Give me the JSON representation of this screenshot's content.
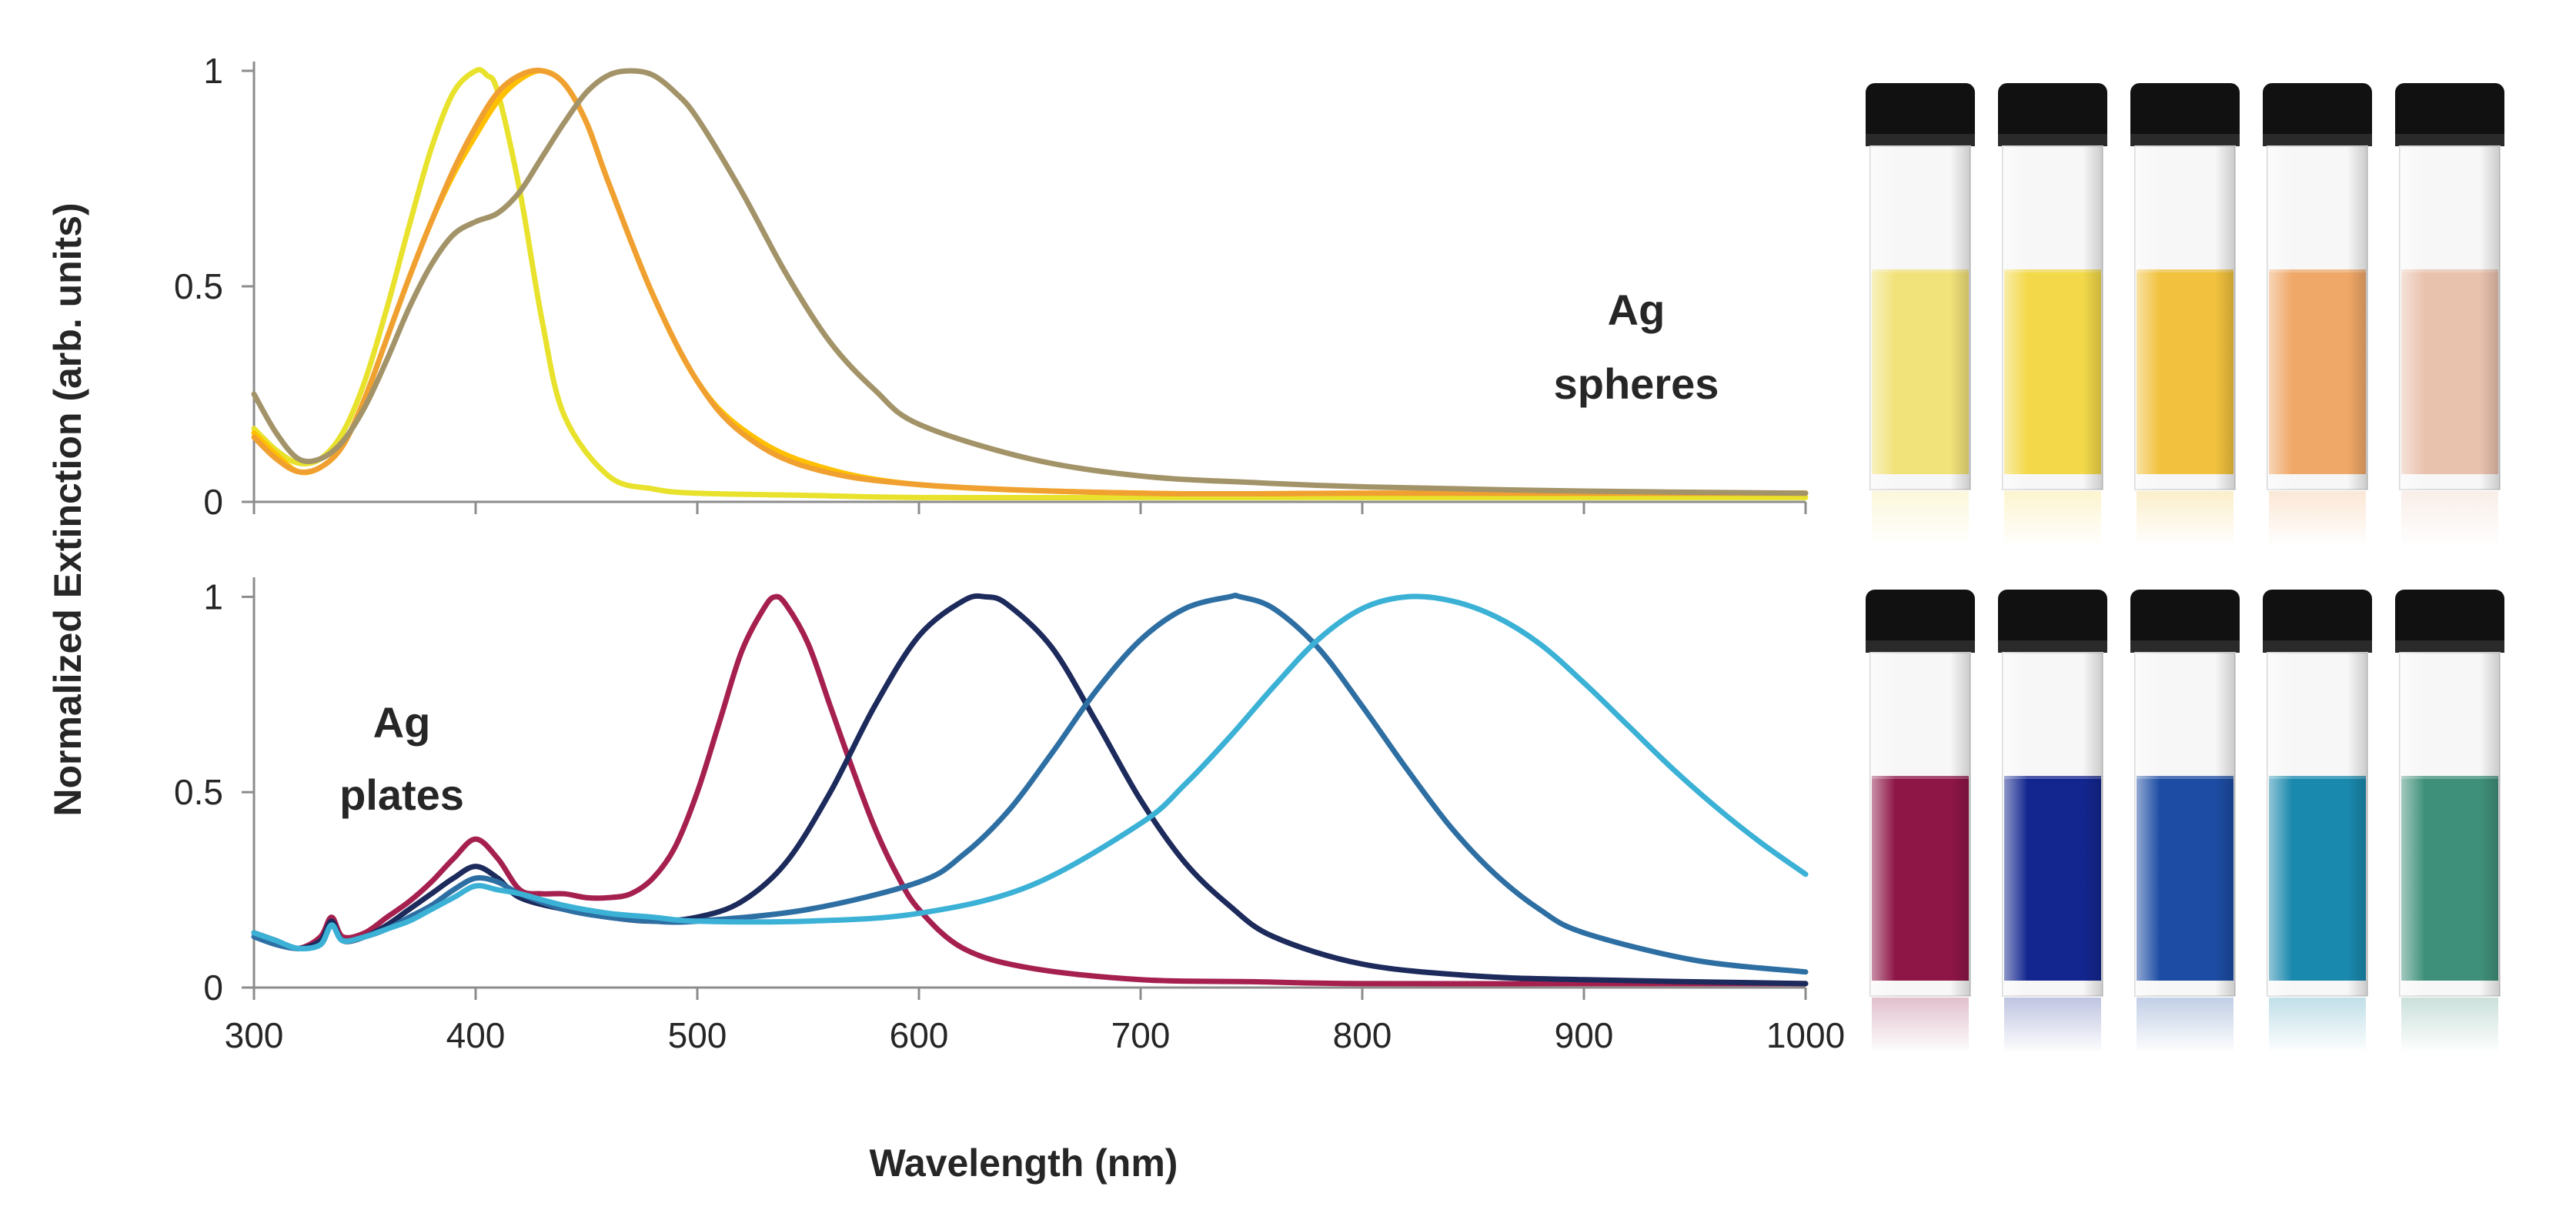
{
  "chart_data": [
    {
      "type": "line",
      "id": "spheres",
      "annotation": [
        "Ag",
        "spheres"
      ],
      "xlim": [
        300,
        1000
      ],
      "ylim": [
        0,
        1.05
      ],
      "yticks": [
        0,
        0.5,
        1
      ],
      "ytick_labels": [
        "0",
        "0.5",
        "1"
      ],
      "series": [
        {
          "name": "sphere-1",
          "color": "#e8e22c",
          "x": [
            300,
            310,
            320,
            330,
            340,
            350,
            360,
            370,
            380,
            390,
            400,
            405,
            410,
            420,
            430,
            440,
            460,
            480,
            500,
            550,
            600,
            700,
            800,
            900,
            1000
          ],
          "y": [
            0.17,
            0.12,
            0.09,
            0.1,
            0.16,
            0.28,
            0.45,
            0.64,
            0.82,
            0.95,
            1.0,
            0.99,
            0.95,
            0.72,
            0.42,
            0.2,
            0.06,
            0.03,
            0.02,
            0.015,
            0.01,
            0.01,
            0.01,
            0.01,
            0.01
          ]
        },
        {
          "name": "sphere-2",
          "color": "#ffc000",
          "x": [
            300,
            310,
            320,
            330,
            340,
            350,
            360,
            370,
            380,
            390,
            400,
            410,
            420,
            430,
            440,
            450,
            460,
            480,
            500,
            520,
            550,
            600,
            700,
            800,
            900,
            1000
          ],
          "y": [
            0.16,
            0.11,
            0.07,
            0.08,
            0.13,
            0.24,
            0.38,
            0.52,
            0.65,
            0.76,
            0.85,
            0.93,
            0.98,
            1.0,
            0.97,
            0.88,
            0.74,
            0.48,
            0.28,
            0.17,
            0.09,
            0.04,
            0.02,
            0.02,
            0.02,
            0.02
          ]
        },
        {
          "name": "sphere-3",
          "color": "#f0a030",
          "x": [
            300,
            310,
            320,
            330,
            340,
            350,
            360,
            370,
            380,
            390,
            400,
            410,
            420,
            430,
            440,
            450,
            460,
            480,
            500,
            520,
            550,
            600,
            700,
            800,
            900,
            1000
          ],
          "y": [
            0.15,
            0.1,
            0.07,
            0.08,
            0.13,
            0.24,
            0.38,
            0.52,
            0.65,
            0.77,
            0.87,
            0.95,
            0.99,
            1.0,
            0.97,
            0.88,
            0.74,
            0.48,
            0.28,
            0.16,
            0.08,
            0.04,
            0.02,
            0.02,
            0.02,
            0.02
          ]
        },
        {
          "name": "sphere-4",
          "color": "#a39368",
          "x": [
            300,
            310,
            320,
            330,
            340,
            350,
            360,
            370,
            380,
            390,
            400,
            410,
            420,
            430,
            440,
            450,
            460,
            470,
            480,
            490,
            500,
            520,
            540,
            560,
            580,
            600,
            650,
            700,
            750,
            800,
            900,
            1000
          ],
          "y": [
            0.25,
            0.16,
            0.1,
            0.1,
            0.14,
            0.22,
            0.33,
            0.45,
            0.55,
            0.62,
            0.65,
            0.67,
            0.72,
            0.8,
            0.88,
            0.95,
            0.99,
            1.0,
            0.99,
            0.95,
            0.89,
            0.72,
            0.53,
            0.37,
            0.26,
            0.18,
            0.1,
            0.06,
            0.045,
            0.035,
            0.025,
            0.02
          ]
        }
      ]
    },
    {
      "type": "line",
      "id": "plates",
      "annotation": [
        "Ag",
        "plates"
      ],
      "xlim": [
        300,
        1000
      ],
      "ylim": [
        0,
        1.05
      ],
      "xticks": [
        300,
        400,
        500,
        600,
        700,
        800,
        900,
        1000
      ],
      "xtick_labels": [
        "300",
        "400",
        "500",
        "600",
        "700",
        "800",
        "900",
        "1000"
      ],
      "yticks": [
        0,
        0.5,
        1
      ],
      "ytick_labels": [
        "0",
        "0.5",
        "1"
      ],
      "series": [
        {
          "name": "plate-1",
          "color": "#a5204f",
          "x": [
            300,
            310,
            320,
            330,
            335,
            340,
            350,
            360,
            370,
            380,
            390,
            400,
            410,
            420,
            430,
            440,
            450,
            460,
            470,
            480,
            490,
            500,
            510,
            520,
            530,
            535,
            540,
            550,
            560,
            570,
            580,
            590,
            600,
            620,
            650,
            700,
            750,
            800,
            900,
            1000
          ],
          "y": [
            0.14,
            0.12,
            0.1,
            0.13,
            0.18,
            0.13,
            0.14,
            0.18,
            0.22,
            0.27,
            0.33,
            0.38,
            0.33,
            0.25,
            0.24,
            0.24,
            0.23,
            0.23,
            0.24,
            0.28,
            0.36,
            0.5,
            0.68,
            0.86,
            0.97,
            1.0,
            0.98,
            0.88,
            0.72,
            0.56,
            0.41,
            0.29,
            0.2,
            0.1,
            0.05,
            0.02,
            0.015,
            0.01,
            0.01,
            0.01
          ]
        },
        {
          "name": "plate-2",
          "color": "#1c2a5c",
          "x": [
            300,
            310,
            320,
            330,
            335,
            340,
            350,
            360,
            370,
            380,
            390,
            400,
            410,
            420,
            440,
            460,
            480,
            500,
            520,
            540,
            560,
            580,
            600,
            620,
            630,
            640,
            660,
            680,
            700,
            720,
            740,
            760,
            800,
            850,
            900,
            1000
          ],
          "y": [
            0.14,
            0.12,
            0.1,
            0.12,
            0.17,
            0.12,
            0.13,
            0.16,
            0.2,
            0.24,
            0.28,
            0.31,
            0.28,
            0.23,
            0.2,
            0.18,
            0.17,
            0.18,
            0.22,
            0.32,
            0.5,
            0.72,
            0.9,
            0.99,
            1.0,
            0.98,
            0.87,
            0.68,
            0.48,
            0.32,
            0.21,
            0.13,
            0.06,
            0.03,
            0.02,
            0.01
          ]
        },
        {
          "name": "plate-3",
          "color": "#2e6fa3",
          "x": [
            300,
            310,
            320,
            330,
            335,
            340,
            350,
            360,
            370,
            380,
            390,
            400,
            410,
            420,
            440,
            460,
            480,
            500,
            550,
            600,
            620,
            640,
            660,
            680,
            700,
            720,
            740,
            745,
            760,
            780,
            800,
            820,
            840,
            860,
            880,
            900,
            950,
            1000
          ],
          "y": [
            0.13,
            0.11,
            0.1,
            0.11,
            0.16,
            0.12,
            0.13,
            0.15,
            0.18,
            0.21,
            0.25,
            0.28,
            0.27,
            0.24,
            0.2,
            0.18,
            0.17,
            0.17,
            0.2,
            0.27,
            0.34,
            0.45,
            0.6,
            0.76,
            0.89,
            0.97,
            1.0,
            1.0,
            0.97,
            0.87,
            0.72,
            0.56,
            0.41,
            0.29,
            0.2,
            0.14,
            0.07,
            0.04
          ]
        },
        {
          "name": "plate-4",
          "color": "#3bb1d6",
          "x": [
            300,
            310,
            320,
            330,
            335,
            340,
            350,
            360,
            370,
            380,
            390,
            400,
            410,
            420,
            440,
            460,
            480,
            500,
            550,
            600,
            650,
            700,
            720,
            740,
            760,
            780,
            800,
            820,
            840,
            860,
            880,
            900,
            920,
            940,
            960,
            980,
            1000
          ],
          "y": [
            0.14,
            0.12,
            0.1,
            0.11,
            0.16,
            0.12,
            0.13,
            0.15,
            0.17,
            0.2,
            0.23,
            0.26,
            0.25,
            0.24,
            0.21,
            0.19,
            0.18,
            0.17,
            0.17,
            0.19,
            0.26,
            0.42,
            0.52,
            0.64,
            0.77,
            0.89,
            0.97,
            1.0,
            0.99,
            0.95,
            0.88,
            0.78,
            0.67,
            0.56,
            0.46,
            0.37,
            0.29
          ]
        }
      ]
    }
  ],
  "shared": {
    "ylabel": "Normalized Extinction (arb. units)",
    "xlabel": "Wavelength (nm)"
  },
  "vials": {
    "spheres": [
      "#f2e27a",
      "#f3d94a",
      "#f2c23e",
      "#f0a868",
      "#e9c2ae"
    ],
    "plates": [
      "#8e1647",
      "#13268f",
      "#1c4ca3",
      "#1989ad",
      "#3f907a"
    ]
  }
}
